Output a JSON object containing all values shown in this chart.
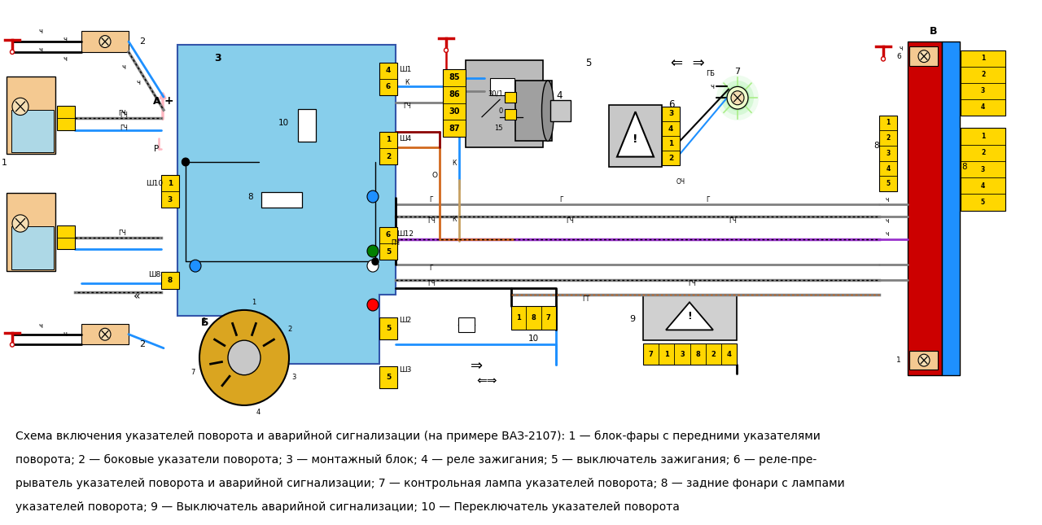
{
  "bg_color": "#ffffff",
  "caption_lines": [
    "Схема включения указателей поворота и аварийной сигнализации (на примере ВАЗ-2107): 1 — блок-фары с передними указателями",
    "поворота; 2 — боковые указатели поворота; 3 — монтажный блок; 4 — реле зажигания; 5 — выключатель зажигания; 6 — реле-пре-",
    "рыватель указателей поворота и аварийной сигнализации; 7 — контрольная лампа указателей поворота; 8 — задние фонари с лампами",
    "указателей поворота; 9 — Выключатель аварийной сигнализации; 10 — Переключатель указателей поворота"
  ],
  "caption_fontsize": 10.0
}
